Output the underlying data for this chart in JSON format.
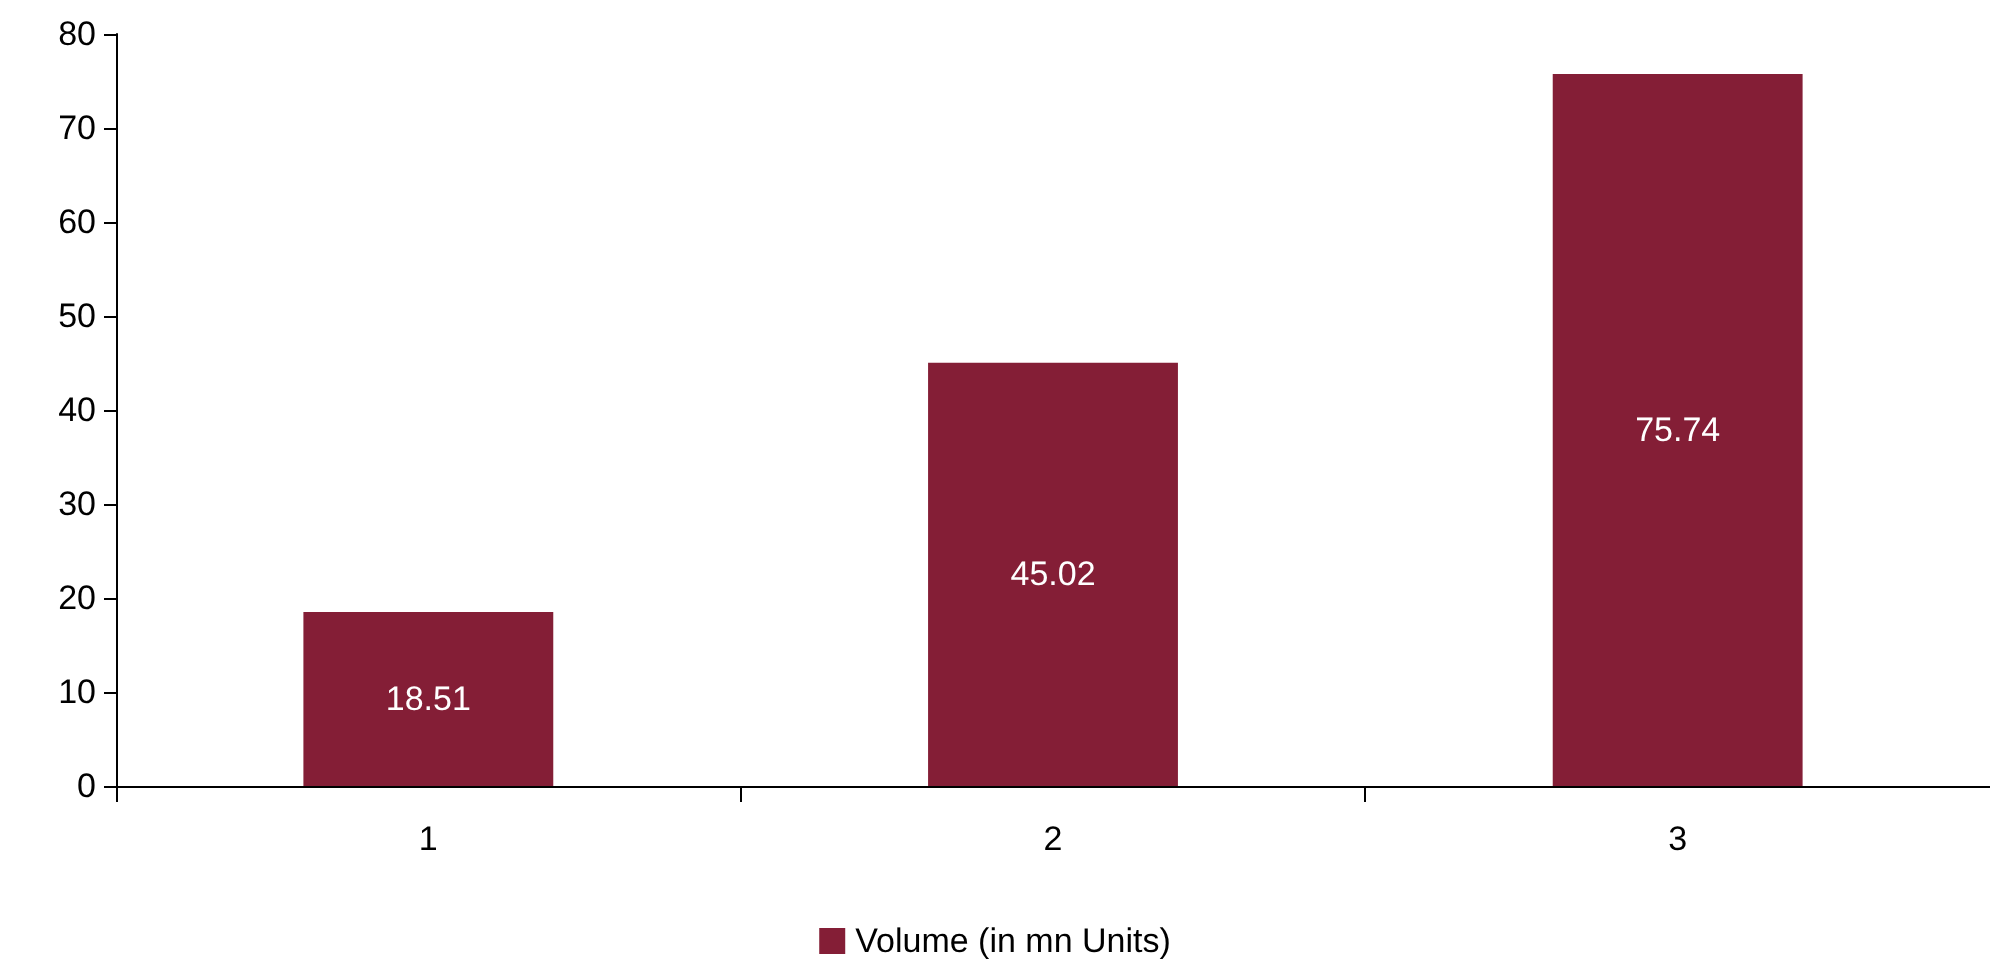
{
  "chart_data": {
    "type": "bar",
    "categories": [
      "1",
      "2",
      "3"
    ],
    "series": [
      {
        "name": "Volume (in mn Units)",
        "color": "#841e36",
        "values": [
          18.51,
          45.02,
          75.74
        ]
      }
    ],
    "ylim": [
      0,
      80
    ],
    "yticks": [
      0,
      10,
      20,
      30,
      40,
      50,
      60,
      70,
      80
    ],
    "grid": false,
    "legend": "bottom",
    "data_labels": true
  }
}
